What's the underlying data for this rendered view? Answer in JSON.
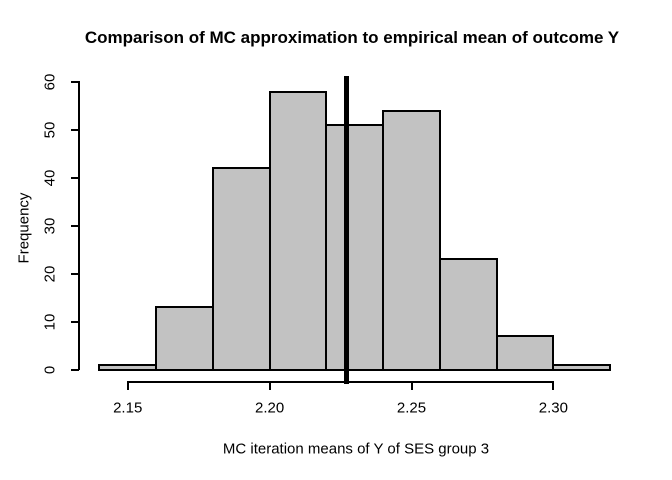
{
  "chart_data": {
    "type": "bar",
    "subtype": "histogram",
    "title": "Comparison of MC approximation to empirical mean of outcome Y",
    "xlabel": "MC iteration means of Y of SES group 3",
    "ylabel": "Frequency",
    "bin_breaks": [
      2.14,
      2.16,
      2.18,
      2.2,
      2.22,
      2.24,
      2.26,
      2.28,
      2.3,
      2.32
    ],
    "counts": [
      1,
      13,
      42,
      58,
      51,
      54,
      23,
      7,
      1
    ],
    "x_ticks": [
      2.15,
      2.2,
      2.25,
      2.3
    ],
    "x_tick_labels": [
      "2.15",
      "2.20",
      "2.25",
      "2.30"
    ],
    "y_ticks": [
      0,
      10,
      20,
      30,
      40,
      50,
      60
    ],
    "xlim": [
      2.14,
      2.32
    ],
    "ylim": [
      0,
      60
    ],
    "grid": false,
    "legend_position": "none",
    "vline_x": 2.227,
    "colors": {
      "bar_fill": "#C2C2C2",
      "bar_stroke": "#000000",
      "vline": "#000000",
      "axis": "#000000",
      "text": "#000000",
      "background": "#FFFFFF"
    }
  }
}
